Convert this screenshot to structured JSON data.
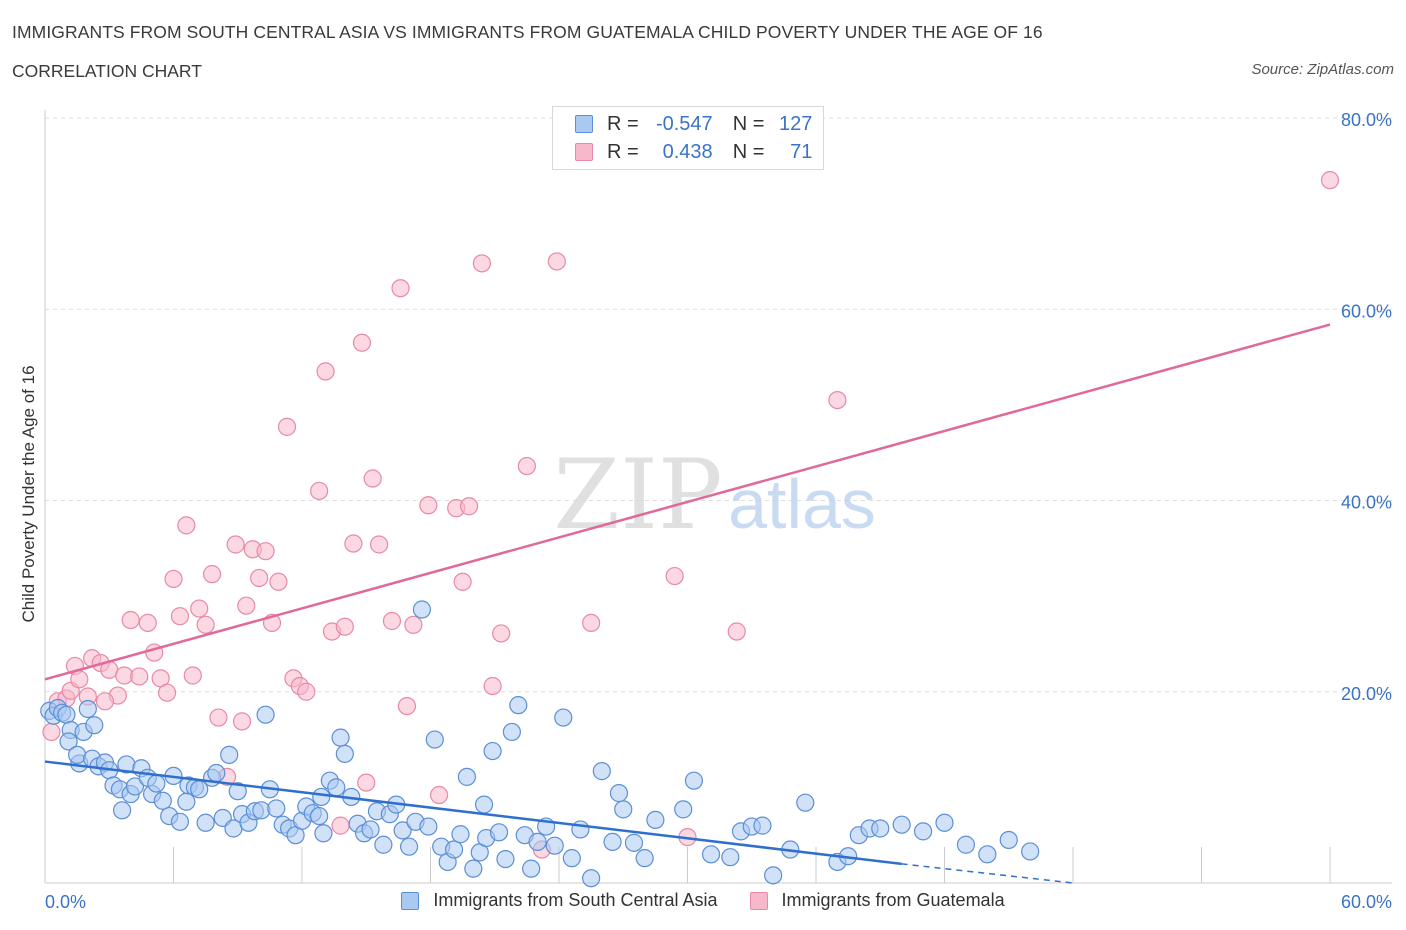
{
  "header": {
    "title": "IMMIGRANTS FROM SOUTH CENTRAL ASIA VS IMMIGRANTS FROM GUATEMALA CHILD POVERTY UNDER THE AGE OF 16",
    "subtitle": "CORRELATION CHART",
    "source": "Source: ZipAtlas.com"
  },
  "colors": {
    "blue_fill": "#a9c8f2",
    "blue_stroke": "#5b8fd6",
    "blue_line": "#2f6fce",
    "pink_fill": "#f7b8cb",
    "pink_stroke": "#e889a8",
    "pink_line": "#e0699a",
    "tick_label": "#3b73c6",
    "grid": "#dddddd"
  },
  "stats": {
    "rows": [
      {
        "r_label": "R =",
        "r_value": "-0.547",
        "n_label": "N =",
        "n_value": "127"
      },
      {
        "r_label": "R =",
        "r_value": "0.438",
        "n_label": "N =",
        "n_value": "71"
      }
    ]
  },
  "chart_data": {
    "type": "scatter",
    "title": "IMMIGRANTS FROM SOUTH CENTRAL ASIA VS IMMIGRANTS FROM GUATEMALA CHILD POVERTY UNDER THE AGE OF 16",
    "xlabel": "",
    "ylabel": "Child Poverty Under the Age of 16",
    "xlim": [
      0,
      60
    ],
    "ylim": [
      0,
      80
    ],
    "x_tick_labels": {
      "left": "0.0%",
      "right": "60.0%"
    },
    "y_ticks": [
      {
        "value": 20,
        "label": "20.0%"
      },
      {
        "value": 40,
        "label": "40.0%"
      },
      {
        "value": 60,
        "label": "60.0%"
      },
      {
        "value": 80,
        "label": "80.0%"
      }
    ],
    "watermark": {
      "zip": "ZIP",
      "atlas": "atlas"
    },
    "series": [
      {
        "name": "Immigrants from South Central Asia",
        "r": -0.547,
        "n": 127,
        "trend": {
          "x0": 0,
          "y0": 12.7,
          "x1": 40,
          "y1": 2.0,
          "dash_to_x": 48,
          "dash_to_y": 0.0
        },
        "points": [
          [
            0.2,
            18.0
          ],
          [
            0.4,
            17.5
          ],
          [
            0.6,
            18.3
          ],
          [
            0.8,
            17.8
          ],
          [
            1.0,
            17.6
          ],
          [
            1.2,
            16.0
          ],
          [
            1.1,
            14.8
          ],
          [
            1.8,
            15.8
          ],
          [
            2.0,
            18.2
          ],
          [
            1.6,
            12.5
          ],
          [
            1.5,
            13.4
          ],
          [
            2.2,
            13.0
          ],
          [
            2.5,
            12.2
          ],
          [
            2.8,
            12.6
          ],
          [
            3.0,
            11.8
          ],
          [
            3.2,
            10.2
          ],
          [
            3.5,
            9.8
          ],
          [
            3.8,
            12.4
          ],
          [
            4.0,
            9.3
          ],
          [
            4.2,
            10.1
          ],
          [
            4.5,
            12.0
          ],
          [
            4.8,
            11.0
          ],
          [
            5.0,
            9.3
          ],
          [
            5.2,
            10.4
          ],
          [
            5.5,
            8.6
          ],
          [
            5.8,
            7.0
          ],
          [
            6.0,
            11.2
          ],
          [
            6.3,
            6.4
          ],
          [
            6.7,
            10.2
          ],
          [
            7.0,
            10.0
          ],
          [
            7.2,
            9.8
          ],
          [
            7.5,
            6.3
          ],
          [
            7.8,
            11.0
          ],
          [
            8.0,
            11.5
          ],
          [
            8.3,
            6.8
          ],
          [
            8.6,
            13.4
          ],
          [
            8.8,
            5.7
          ],
          [
            9.0,
            9.6
          ],
          [
            9.2,
            7.2
          ],
          [
            9.5,
            6.3
          ],
          [
            9.8,
            7.5
          ],
          [
            10.1,
            7.6
          ],
          [
            10.3,
            17.6
          ],
          [
            10.5,
            9.8
          ],
          [
            10.8,
            7.8
          ],
          [
            11.1,
            6.1
          ],
          [
            11.4,
            5.7
          ],
          [
            11.7,
            5.0
          ],
          [
            12.0,
            6.5
          ],
          [
            12.2,
            8.0
          ],
          [
            12.5,
            7.3
          ],
          [
            12.8,
            7.0
          ],
          [
            13.0,
            5.2
          ],
          [
            13.3,
            10.7
          ],
          [
            13.6,
            10.0
          ],
          [
            13.8,
            15.2
          ],
          [
            14.0,
            13.5
          ],
          [
            14.3,
            9.0
          ],
          [
            14.6,
            6.2
          ],
          [
            14.9,
            5.2
          ],
          [
            15.2,
            5.6
          ],
          [
            15.5,
            7.5
          ],
          [
            15.8,
            4.0
          ],
          [
            16.1,
            7.2
          ],
          [
            16.4,
            8.2
          ],
          [
            16.7,
            5.5
          ],
          [
            17.0,
            3.8
          ],
          [
            17.3,
            6.4
          ],
          [
            17.6,
            28.6
          ],
          [
            17.9,
            5.9
          ],
          [
            18.2,
            15.0
          ],
          [
            18.5,
            3.8
          ],
          [
            18.8,
            2.2
          ],
          [
            19.1,
            3.5
          ],
          [
            19.4,
            5.1
          ],
          [
            19.7,
            11.1
          ],
          [
            20.0,
            1.5
          ],
          [
            20.3,
            3.2
          ],
          [
            20.6,
            4.7
          ],
          [
            20.9,
            13.8
          ],
          [
            21.2,
            5.3
          ],
          [
            21.5,
            2.5
          ],
          [
            21.8,
            15.8
          ],
          [
            22.1,
            18.6
          ],
          [
            22.4,
            5.0
          ],
          [
            22.7,
            1.5
          ],
          [
            23.0,
            4.3
          ],
          [
            23.4,
            5.9
          ],
          [
            23.8,
            3.9
          ],
          [
            24.2,
            17.3
          ],
          [
            24.6,
            2.6
          ],
          [
            25.0,
            5.6
          ],
          [
            25.5,
            0.5
          ],
          [
            26.0,
            11.7
          ],
          [
            26.5,
            4.3
          ],
          [
            27.0,
            7.7
          ],
          [
            27.5,
            4.2
          ],
          [
            28.0,
            2.6
          ],
          [
            28.5,
            6.6
          ],
          [
            29.8,
            7.7
          ],
          [
            30.3,
            10.7
          ],
          [
            31.1,
            3.0
          ],
          [
            32.0,
            2.7
          ],
          [
            32.5,
            5.4
          ],
          [
            33.0,
            5.9
          ],
          [
            34.0,
            0.8
          ],
          [
            34.8,
            3.5
          ],
          [
            35.5,
            8.4
          ],
          [
            37.0,
            2.2
          ],
          [
            37.5,
            2.8
          ],
          [
            38.0,
            5.0
          ],
          [
            38.5,
            5.7
          ],
          [
            39.0,
            5.7
          ],
          [
            40.0,
            6.1
          ],
          [
            41.0,
            5.4
          ],
          [
            42.0,
            6.3
          ],
          [
            43.0,
            4.0
          ],
          [
            44.0,
            3.0
          ],
          [
            45.0,
            4.5
          ],
          [
            46.0,
            3.3
          ],
          [
            2.3,
            16.5
          ],
          [
            6.6,
            8.5
          ],
          [
            12.9,
            9.0
          ],
          [
            20.5,
            8.2
          ],
          [
            26.8,
            9.4
          ],
          [
            33.5,
            6.0
          ],
          [
            3.6,
            7.6
          ]
        ]
      },
      {
        "name": "Immigrants from Guatemala",
        "r": 0.438,
        "n": 71,
        "trend": {
          "x0": 0,
          "y0": 21.3,
          "x1": 60,
          "y1": 58.4
        },
        "points": [
          [
            0.3,
            15.8
          ],
          [
            0.6,
            19.0
          ],
          [
            1.0,
            19.3
          ],
          [
            1.2,
            20.1
          ],
          [
            1.4,
            22.7
          ],
          [
            1.6,
            21.3
          ],
          [
            2.0,
            19.5
          ],
          [
            2.2,
            23.5
          ],
          [
            2.6,
            23.0
          ],
          [
            3.0,
            22.3
          ],
          [
            3.4,
            19.6
          ],
          [
            3.7,
            21.7
          ],
          [
            4.0,
            27.5
          ],
          [
            4.4,
            21.6
          ],
          [
            4.8,
            27.2
          ],
          [
            5.1,
            24.1
          ],
          [
            5.4,
            21.4
          ],
          [
            5.7,
            19.9
          ],
          [
            6.0,
            31.8
          ],
          [
            6.3,
            27.9
          ],
          [
            6.6,
            37.4
          ],
          [
            6.9,
            21.7
          ],
          [
            7.2,
            28.7
          ],
          [
            7.5,
            27.0
          ],
          [
            7.8,
            32.3
          ],
          [
            8.1,
            17.3
          ],
          [
            8.5,
            11.1
          ],
          [
            8.9,
            35.4
          ],
          [
            9.2,
            16.9
          ],
          [
            9.4,
            29.0
          ],
          [
            9.7,
            34.9
          ],
          [
            10.0,
            31.9
          ],
          [
            10.3,
            34.7
          ],
          [
            10.6,
            27.2
          ],
          [
            10.9,
            31.5
          ],
          [
            11.3,
            47.7
          ],
          [
            11.6,
            21.4
          ],
          [
            11.9,
            20.6
          ],
          [
            12.2,
            20.0
          ],
          [
            12.8,
            41.0
          ],
          [
            13.1,
            53.5
          ],
          [
            13.4,
            26.3
          ],
          [
            13.8,
            6.0
          ],
          [
            14.0,
            26.8
          ],
          [
            14.4,
            35.5
          ],
          [
            14.8,
            56.5
          ],
          [
            15.0,
            10.5
          ],
          [
            15.3,
            42.3
          ],
          [
            15.6,
            35.4
          ],
          [
            16.2,
            27.4
          ],
          [
            16.6,
            62.2
          ],
          [
            16.9,
            18.5
          ],
          [
            17.2,
            27.0
          ],
          [
            17.9,
            39.5
          ],
          [
            18.4,
            9.2
          ],
          [
            19.2,
            39.2
          ],
          [
            19.5,
            31.5
          ],
          [
            19.8,
            39.4
          ],
          [
            20.4,
            64.8
          ],
          [
            20.9,
            20.6
          ],
          [
            21.3,
            26.1
          ],
          [
            22.5,
            43.6
          ],
          [
            23.2,
            3.5
          ],
          [
            23.9,
            65.0
          ],
          [
            25.5,
            27.2
          ],
          [
            29.4,
            32.1
          ],
          [
            30.0,
            4.8
          ],
          [
            32.3,
            26.3
          ],
          [
            37.0,
            50.5
          ],
          [
            60.0,
            73.5
          ],
          [
            2.8,
            19.0
          ]
        ]
      }
    ]
  },
  "legend": {
    "items": [
      "Immigrants from South Central Asia",
      "Immigrants from Guatemala"
    ]
  }
}
